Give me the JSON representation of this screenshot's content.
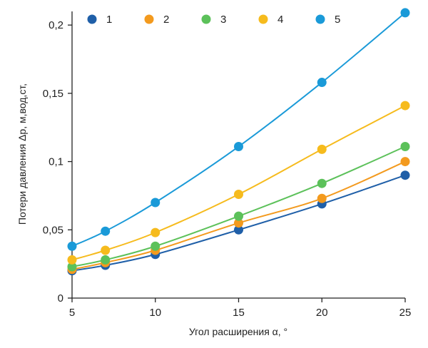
{
  "chart_data": {
    "type": "line",
    "title": "",
    "xlabel": "Угол расширения α, °",
    "ylabel": "Потери давления Δp, м,вод,ст,",
    "xlim": [
      5,
      25
    ],
    "ylim": [
      0,
      0.21
    ],
    "xticks": [
      5,
      10,
      15,
      20,
      25
    ],
    "xtick_labels": [
      "5",
      "10",
      "15",
      "20",
      "25"
    ],
    "yticks": [
      0,
      0.05,
      0.1,
      0.15,
      0.2
    ],
    "ytick_labels": [
      "0",
      "0,05",
      "0,1",
      "0,15",
      "0,2"
    ],
    "grid": false,
    "legend_position": "top",
    "x": [
      5,
      7,
      10,
      15,
      20,
      25
    ],
    "series": [
      {
        "name": "1",
        "color": "#1f5fa8",
        "values": [
          0.02,
          0.024,
          0.032,
          0.05,
          0.069,
          0.09
        ]
      },
      {
        "name": "2",
        "color": "#f39a1e",
        "values": [
          0.021,
          0.026,
          0.035,
          0.055,
          0.073,
          0.1
        ]
      },
      {
        "name": "3",
        "color": "#5cc15a",
        "values": [
          0.023,
          0.028,
          0.038,
          0.06,
          0.084,
          0.111
        ]
      },
      {
        "name": "4",
        "color": "#f6bb1d",
        "values": [
          0.028,
          0.035,
          0.048,
          0.076,
          0.109,
          0.141
        ]
      },
      {
        "name": "5",
        "color": "#1a9ad8",
        "values": [
          0.038,
          0.049,
          0.07,
          0.111,
          0.158,
          0.209
        ]
      }
    ]
  }
}
